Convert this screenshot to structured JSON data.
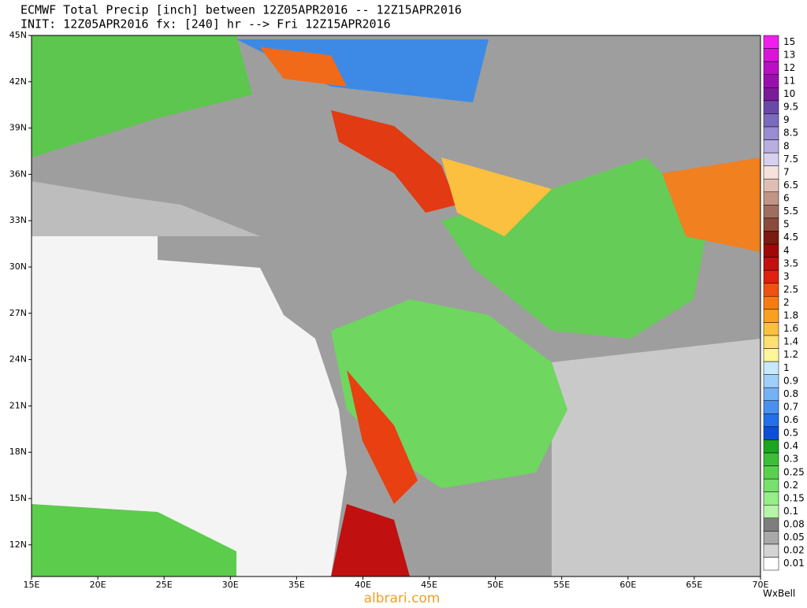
{
  "header": {
    "line1": "ECMWF Total Precip [inch] between 12Z05APR2016 -- 12Z15APR2016",
    "line2": "INIT: 12Z05APR2016 fx: [240] hr --> Fri 12Z15APR2016"
  },
  "map": {
    "lat_labels": [
      "45N",
      "42N",
      "39N",
      "36N",
      "33N",
      "30N",
      "27N",
      "24N",
      "21N",
      "18N",
      "15N",
      "12N"
    ],
    "lon_labels": [
      "15E",
      "20E",
      "25E",
      "30E",
      "35E",
      "40E",
      "45E",
      "50E",
      "55E",
      "60E",
      "65E",
      "70E"
    ]
  },
  "colorbar": {
    "levels": [
      {
        "label": 0.01,
        "color": "#ffffff"
      },
      {
        "label": 0.02,
        "color": "#d4d4d4"
      },
      {
        "label": 0.05,
        "color": "#a9a9a9"
      },
      {
        "label": 0.08,
        "color": "#7e7e7e"
      },
      {
        "label": 0.1,
        "color": "#b4f5a6"
      },
      {
        "label": 0.15,
        "color": "#96ee88"
      },
      {
        "label": 0.2,
        "color": "#78e06c"
      },
      {
        "label": 0.25,
        "color": "#5ad04f"
      },
      {
        "label": 0.3,
        "color": "#3cbf36"
      },
      {
        "label": 0.4,
        "color": "#1ca51f"
      },
      {
        "label": 0.5,
        "color": "#0d4fd6"
      },
      {
        "label": 0.6,
        "color": "#2370e8"
      },
      {
        "label": 0.7,
        "color": "#4a90f0"
      },
      {
        "label": 0.8,
        "color": "#74b2f6"
      },
      {
        "label": 0.9,
        "color": "#a0d0fa"
      },
      {
        "label": 1,
        "color": "#c8e8fc"
      },
      {
        "label": 1.2,
        "color": "#fff59a"
      },
      {
        "label": 1.4,
        "color": "#fde070"
      },
      {
        "label": 1.6,
        "color": "#fbc040"
      },
      {
        "label": 1.8,
        "color": "#f9a020"
      },
      {
        "label": 2,
        "color": "#f77c10"
      },
      {
        "label": 2.5,
        "color": "#f05010"
      },
      {
        "label": 3,
        "color": "#e02010"
      },
      {
        "label": 3.5,
        "color": "#c21010"
      },
      {
        "label": 4,
        "color": "#a00808"
      },
      {
        "label": 4.5,
        "color": "#7a1a10"
      },
      {
        "label": 5,
        "color": "#8a4a3c"
      },
      {
        "label": 5.5,
        "color": "#a06e60"
      },
      {
        "label": 6,
        "color": "#c09486"
      },
      {
        "label": 6.5,
        "color": "#e0beb4"
      },
      {
        "label": 7,
        "color": "#f6e2dc"
      },
      {
        "label": 7.5,
        "color": "#d8d0ee"
      },
      {
        "label": 8,
        "color": "#b8aee0"
      },
      {
        "label": 8.5,
        "color": "#9a8cd0"
      },
      {
        "label": 9,
        "color": "#7c6abe"
      },
      {
        "label": 9.5,
        "color": "#6a48aa"
      },
      {
        "label": 10,
        "color": "#7a1c9a"
      },
      {
        "label": 11,
        "color": "#9a10ae"
      },
      {
        "label": 12,
        "color": "#ba10c4"
      },
      {
        "label": 13,
        "color": "#d816d8"
      },
      {
        "label": 15,
        "color": "#f020ec"
      }
    ]
  },
  "credit": "WxBell",
  "watermark": "albrari.com"
}
